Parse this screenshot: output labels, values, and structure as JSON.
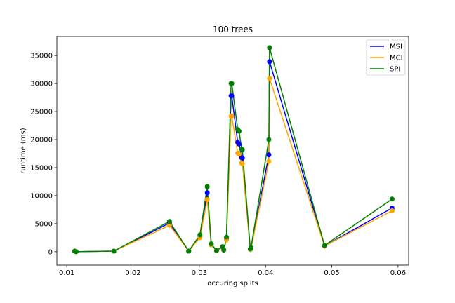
{
  "chart_data": {
    "type": "line",
    "title": "100 trees",
    "xlabel": "occuring splits",
    "ylabel": "runtime (ms)",
    "xlim": [
      0.0085,
      0.0616
    ],
    "ylim": [
      -2400,
      38400
    ],
    "x_ticks": [
      0.01,
      0.02,
      0.03,
      0.04,
      0.05,
      0.06
    ],
    "x_tick_labels": [
      "0.01",
      "0.02",
      "0.03",
      "0.04",
      "0.05",
      "0.06"
    ],
    "y_ticks": [
      0,
      5000,
      10000,
      15000,
      20000,
      25000,
      30000,
      35000
    ],
    "y_tick_labels": [
      "0",
      "5000",
      "10000",
      "15000",
      "20000",
      "25000",
      "30000",
      "35000"
    ],
    "grid": false,
    "legend_position": "top-right",
    "x": [
      0.0112,
      0.0114,
      0.0171,
      0.0255,
      0.0284,
      0.0301,
      0.0312,
      0.0318,
      0.0326,
      0.0335,
      0.0337,
      0.0341,
      0.0348,
      0.0349,
      0.0358,
      0.036,
      0.0364,
      0.0365,
      0.0377,
      0.0378,
      0.0405,
      0.0406,
      0.0406,
      0.0489,
      0.0591
    ],
    "series": [
      {
        "name": "MSI",
        "color": "#0000ff",
        "values": [
          100,
          0,
          100,
          5100,
          100,
          2800,
          10500,
          1300,
          200,
          800,
          300,
          2300,
          27800,
          27800,
          19500,
          19200,
          16800,
          16700,
          400,
          500,
          17300,
          33900,
          33900,
          1000,
          7800
        ]
      },
      {
        "name": "MCI",
        "color": "#ffa500",
        "values": [
          100,
          0,
          100,
          4700,
          100,
          2500,
          9300,
          1200,
          200,
          800,
          300,
          2100,
          24200,
          24200,
          17600,
          17400,
          15800,
          15700,
          400,
          500,
          16100,
          30900,
          30900,
          1000,
          7300
        ]
      },
      {
        "name": "SPI",
        "color": "#008000",
        "values": [
          100,
          0,
          100,
          5400,
          100,
          3000,
          11600,
          1400,
          200,
          900,
          300,
          2600,
          30000,
          30000,
          21800,
          21500,
          18300,
          18200,
          500,
          700,
          20000,
          36400,
          36400,
          1100,
          9400
        ]
      }
    ]
  }
}
